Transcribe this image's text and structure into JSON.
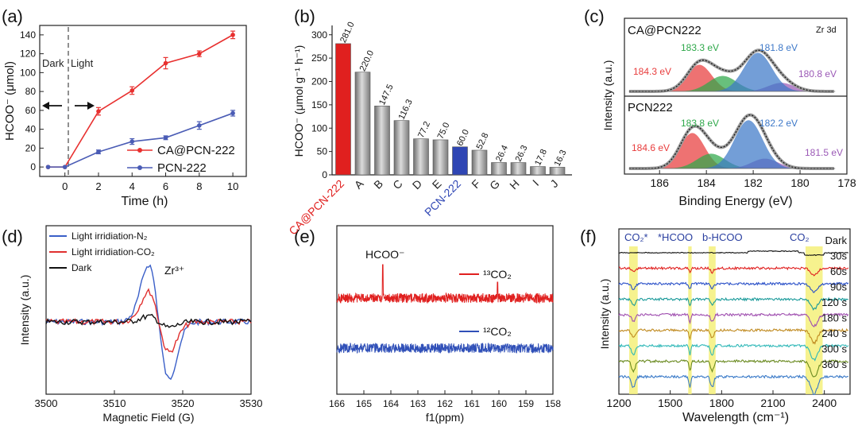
{
  "panels": [
    {
      "id": "a",
      "label": "(a)"
    },
    {
      "id": "b",
      "label": "(b)"
    },
    {
      "id": "c",
      "label": "(c)"
    },
    {
      "id": "d",
      "label": "(d)"
    },
    {
      "id": "e",
      "label": "(e)"
    },
    {
      "id": "f",
      "label": "(f)"
    }
  ],
  "chart_data": [
    {
      "panel": "a",
      "type": "line",
      "xlabel": "Time (h)",
      "ylabel": "HCOO⁻ (μmol)",
      "xlim": [
        -1.5,
        10.8
      ],
      "ylim": [
        -10,
        150
      ],
      "xticks": [
        0,
        2,
        4,
        6,
        8,
        10
      ],
      "yticks": [
        0,
        20,
        40,
        60,
        80,
        100,
        120,
        140
      ],
      "annotations": {
        "dark": "Dark",
        "light": "Light"
      },
      "series": [
        {
          "name": "CA@PCN-222",
          "color": "#e8302f",
          "x": [
            -1,
            0,
            2,
            4,
            6,
            8,
            10
          ],
          "y": [
            0,
            0,
            59,
            81,
            110,
            120,
            140
          ],
          "err": [
            0,
            0,
            4,
            4,
            6,
            3,
            4
          ]
        },
        {
          "name": "PCN-222",
          "color": "#4a5cb5",
          "x": [
            -1,
            0,
            2,
            4,
            6,
            8,
            10
          ],
          "y": [
            0,
            0,
            16,
            27,
            31,
            44,
            57
          ],
          "err": [
            0,
            0,
            2,
            3,
            2,
            4,
            3
          ]
        }
      ]
    },
    {
      "panel": "b",
      "type": "bar",
      "ylabel": "HCOO⁻ (μmol g⁻¹ h⁻¹)",
      "ylim": [
        0,
        320
      ],
      "yticks": [
        0,
        50,
        100,
        150,
        200,
        250,
        300
      ],
      "categories": [
        "CA@PCN-222",
        "A",
        "B",
        "C",
        "D",
        "E",
        "PCN-222",
        "F",
        "G",
        "H",
        "I",
        "J"
      ],
      "values": [
        281.0,
        220.0,
        147.5,
        116.3,
        77.2,
        75.0,
        60.0,
        52.8,
        26.4,
        26.3,
        17.8,
        16.3
      ],
      "value_labels": [
        "281.0",
        "220.0",
        "147.5",
        "116.3",
        "77.2",
        "75.0",
        "60.0",
        "52.8",
        "26.4",
        "26.3",
        "17.8",
        "16.3"
      ],
      "colors": [
        "#e0201f",
        "#9a9a9a",
        "#9a9a9a",
        "#9a9a9a",
        "#9a9a9a",
        "#9a9a9a",
        "#2f46b4",
        "#9a9a9a",
        "#9a9a9a",
        "#9a9a9a",
        "#9a9a9a",
        "#9a9a9a"
      ],
      "category_colors": [
        "#e0201f",
        "#222222",
        "#222222",
        "#222222",
        "#222222",
        "#222222",
        "#2f46b4",
        "#222222",
        "#222222",
        "#222222",
        "#222222",
        "#222222"
      ]
    },
    {
      "panel": "c",
      "type": "area",
      "title": "Zr 3d",
      "xlabel": "Binding Energy (eV)",
      "ylabel": "Intensity (a.u.)",
      "xlim": [
        187.5,
        178
      ],
      "xticks": [
        186,
        184,
        182,
        180,
        178
      ],
      "spectra": [
        {
          "name": "CA@PCN222",
          "peaks": [
            {
              "label": "184.3 eV",
              "center": 184.3,
              "color": "#e83c3c"
            },
            {
              "label": "183.3 eV",
              "center": 183.3,
              "color": "#2ea84a"
            },
            {
              "label": "181.8 eV",
              "center": 181.8,
              "color": "#3d78c8"
            },
            {
              "label": "180.8 eV",
              "center": 180.8,
              "color": "#9b59b6"
            }
          ]
        },
        {
          "name": "PCN222",
          "peaks": [
            {
              "label": "184.6 eV",
              "center": 184.6,
              "color": "#e83c3c"
            },
            {
              "label": "183.8 eV",
              "center": 183.8,
              "color": "#2ea84a"
            },
            {
              "label": "182.2 eV",
              "center": 182.2,
              "color": "#3d78c8"
            },
            {
              "label": "181.5 eV",
              "center": 181.5,
              "color": "#9b59b6"
            }
          ]
        }
      ]
    },
    {
      "panel": "d",
      "type": "line",
      "xlabel": "Magnetic Field (G)",
      "ylabel": "Intensity (a.u.)",
      "xlim": [
        3500,
        3530
      ],
      "xticks": [
        3500,
        3510,
        3520,
        3530
      ],
      "annotation": "Zr³⁺",
      "series": [
        {
          "name": "Light irridiation-N₂",
          "color": "#3a5fc8"
        },
        {
          "name": "Light irridiation-CO₂",
          "color": "#e0302f"
        },
        {
          "name": "Dark",
          "color": "#111111"
        }
      ]
    },
    {
      "panel": "e",
      "type": "line",
      "xlabel": "f1(ppm)",
      "xlim": [
        166,
        158
      ],
      "xticks": [
        166,
        165,
        164,
        163,
        162,
        161,
        160,
        159,
        158
      ],
      "annotation": "HCOO⁻",
      "peak_ppm": 164.3,
      "series": [
        {
          "name": "¹³CO₂",
          "color": "#e0201f"
        },
        {
          "name": "¹²CO₂",
          "color": "#3050b8"
        }
      ]
    },
    {
      "panel": "f",
      "type": "line",
      "xlabel": "Wavelength (cm⁻¹)",
      "ylabel": "Intensity (a.u.)",
      "xlim": [
        1200,
        2550
      ],
      "xticks": [
        1200,
        1500,
        1800,
        2100,
        2400
      ],
      "band_labels": [
        "CO₂*",
        "*HCOO",
        "b-HCOO",
        "CO₂"
      ],
      "bands": [
        [
          1260,
          1310
        ],
        [
          1605,
          1625
        ],
        [
          1725,
          1765
        ],
        [
          2290,
          2390
        ]
      ],
      "time_labels": [
        "Dark",
        "30s",
        "60s",
        "90s",
        "120 s",
        "180 s",
        "240 s",
        "300 s",
        "360 s"
      ],
      "colors": [
        "#111111",
        "#e0201f",
        "#2a50c8",
        "#1a9a9a",
        "#a050b0",
        "#c08a20",
        "#30b8b8",
        "#6a8a20",
        "#3a7ac8"
      ]
    }
  ]
}
